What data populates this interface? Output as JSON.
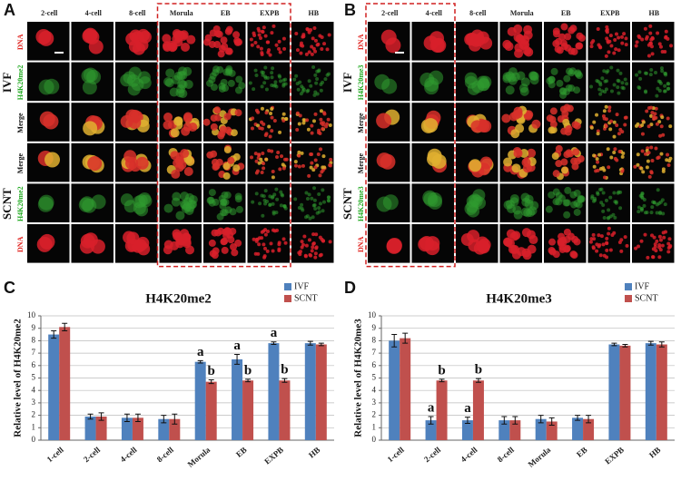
{
  "panels": [
    {
      "label": "A",
      "columns": [
        "2-cell",
        "4-cell",
        "8-cell",
        "Morula",
        "EB",
        "EXPB",
        "HB"
      ],
      "rows": [
        "DNA",
        "H4K20me2",
        "Merge",
        "Merge",
        "H4K20me2",
        "DNA"
      ],
      "groups": [
        "IVF",
        "SCNT"
      ]
    },
    {
      "label": "B",
      "columns": [
        "2-cell",
        "4-cell",
        "8-cell",
        "Morula",
        "EB",
        "EXPB",
        "HB"
      ],
      "rows": [
        "DNA",
        "H4K20me3",
        "Merge",
        "Merge",
        "H4K20me3",
        "DNA"
      ],
      "groups": [
        "IVF",
        "SCNT"
      ]
    }
  ],
  "chart_data": [
    {
      "type": "bar",
      "panel_label": "C",
      "title": "H4K20me2",
      "y_label": "Relative level of H4K20me2",
      "categories": [
        "1-cell",
        "2-cell",
        "4-cell",
        "8-cell",
        "Morula",
        "EB",
        "EXPB",
        "HB"
      ],
      "series": [
        {
          "name": "IVF",
          "color": "#4f81bd",
          "values": [
            8.5,
            1.9,
            1.8,
            1.7,
            6.3,
            6.5,
            7.8,
            7.8
          ],
          "errors": [
            0.3,
            0.2,
            0.3,
            0.3,
            0.1,
            0.4,
            0.1,
            0.15
          ]
        },
        {
          "name": "SCNT",
          "color": "#c0504d",
          "values": [
            9.1,
            1.9,
            1.8,
            1.7,
            4.7,
            4.8,
            4.8,
            7.7
          ],
          "errors": [
            0.3,
            0.3,
            0.3,
            0.4,
            0.15,
            0.1,
            0.15,
            0.1
          ]
        }
      ],
      "ylim": [
        0,
        10
      ],
      "yticks": [
        0,
        1,
        2,
        3,
        4,
        5,
        6,
        7,
        8,
        9,
        10
      ],
      "grid": true,
      "legend": "top-right",
      "annotations": [
        {
          "text": "a",
          "category": "Morula",
          "series": "IVF"
        },
        {
          "text": "b",
          "category": "Morula",
          "series": "SCNT"
        },
        {
          "text": "a",
          "category": "EB",
          "series": "IVF"
        },
        {
          "text": "b",
          "category": "EB",
          "series": "SCNT"
        },
        {
          "text": "a",
          "category": "EXPB",
          "series": "IVF"
        },
        {
          "text": "b",
          "category": "EXPB",
          "series": "SCNT"
        }
      ]
    },
    {
      "type": "bar",
      "panel_label": "D",
      "title": "H4K20me3",
      "y_label": "Relative level of H4K20me3",
      "categories": [
        "1-cell",
        "2-cell",
        "4-cell",
        "8-cell",
        "Morula",
        "EB",
        "EXPB",
        "HB"
      ],
      "series": [
        {
          "name": "IVF",
          "color": "#4f81bd",
          "values": [
            8.0,
            1.6,
            1.6,
            1.6,
            1.7,
            1.8,
            7.7,
            7.8
          ],
          "errors": [
            0.5,
            0.3,
            0.25,
            0.3,
            0.3,
            0.2,
            0.1,
            0.15
          ]
        },
        {
          "name": "SCNT",
          "color": "#c0504d",
          "values": [
            8.2,
            4.8,
            4.8,
            1.6,
            1.5,
            1.7,
            7.6,
            7.7
          ],
          "errors": [
            0.4,
            0.1,
            0.15,
            0.3,
            0.3,
            0.3,
            0.1,
            0.2
          ]
        }
      ],
      "ylim": [
        0,
        10
      ],
      "yticks": [
        0,
        1,
        2,
        3,
        4,
        5,
        6,
        7,
        8,
        9,
        10
      ],
      "grid": true,
      "legend": "top-right",
      "annotations": [
        {
          "text": "a",
          "category": "2-cell",
          "series": "IVF"
        },
        {
          "text": "b",
          "category": "2-cell",
          "series": "SCNT"
        },
        {
          "text": "a",
          "category": "4-cell",
          "series": "IVF"
        },
        {
          "text": "b",
          "category": "4-cell",
          "series": "SCNT"
        }
      ]
    }
  ]
}
